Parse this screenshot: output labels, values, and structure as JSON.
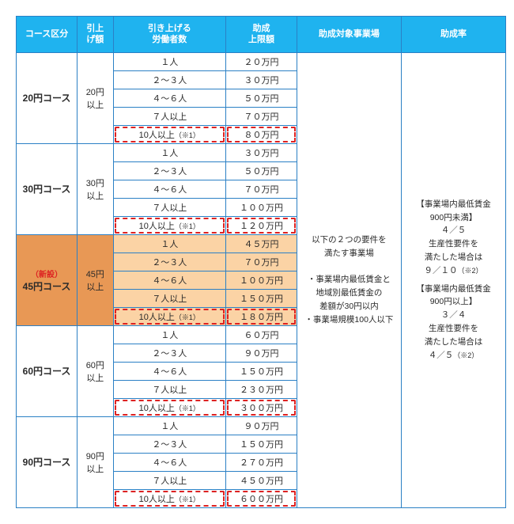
{
  "headers": {
    "course": "コース区分",
    "raise": "引上\nげ額",
    "workers": "引き上げる\n労働者数",
    "amount": "助成\n上限額",
    "target": "助成対象事業場",
    "rate": "助成率"
  },
  "courses": [
    {
      "name": "20円コース",
      "new_label": "",
      "raise": "20円\n以上",
      "rows": [
        {
          "workers": "１人",
          "amount": "２０万円",
          "dashed": false
        },
        {
          "workers": "２～３人",
          "amount": "３０万円",
          "dashed": false
        },
        {
          "workers": "４～６人",
          "amount": "５０万円",
          "dashed": false
        },
        {
          "workers": "７人以上",
          "amount": "７０万円",
          "dashed": false
        },
        {
          "workers": "10人以上（※1）",
          "amount": "８０万円",
          "dashed": true
        }
      ],
      "highlight": false
    },
    {
      "name": "30円コース",
      "new_label": "",
      "raise": "30円\n以上",
      "rows": [
        {
          "workers": "１人",
          "amount": "３０万円",
          "dashed": false
        },
        {
          "workers": "２～３人",
          "amount": "５０万円",
          "dashed": false
        },
        {
          "workers": "４～６人",
          "amount": "７０万円",
          "dashed": false
        },
        {
          "workers": "７人以上",
          "amount": "１００万円",
          "dashed": false
        },
        {
          "workers": "10人以上（※1）",
          "amount": "１２０万円",
          "dashed": true
        }
      ],
      "highlight": false
    },
    {
      "name": "45円コース",
      "new_label": "（新設）",
      "raise": "45円\n以上",
      "rows": [
        {
          "workers": "１人",
          "amount": "４５万円",
          "dashed": false
        },
        {
          "workers": "２～３人",
          "amount": "７０万円",
          "dashed": false
        },
        {
          "workers": "４～６人",
          "amount": "１００万円",
          "dashed": false
        },
        {
          "workers": "７人以上",
          "amount": "１５０万円",
          "dashed": false
        },
        {
          "workers": "10人以上（※1）",
          "amount": "１８０万円",
          "dashed": true
        }
      ],
      "highlight": true
    },
    {
      "name": "60円コース",
      "new_label": "",
      "raise": "60円\n以上",
      "rows": [
        {
          "workers": "１人",
          "amount": "６０万円",
          "dashed": false
        },
        {
          "workers": "２～３人",
          "amount": "９０万円",
          "dashed": false
        },
        {
          "workers": "４～６人",
          "amount": "１５０万円",
          "dashed": false
        },
        {
          "workers": "７人以上",
          "amount": "２３０万円",
          "dashed": false
        },
        {
          "workers": "10人以上（※1）",
          "amount": "３００万円",
          "dashed": true
        }
      ],
      "highlight": false
    },
    {
      "name": "90円コース",
      "new_label": "",
      "raise": "90円\n以上",
      "rows": [
        {
          "workers": "１人",
          "amount": "９０万円",
          "dashed": false
        },
        {
          "workers": "２～３人",
          "amount": "１５０万円",
          "dashed": false
        },
        {
          "workers": "４～６人",
          "amount": "２７０万円",
          "dashed": false
        },
        {
          "workers": "７人以上",
          "amount": "４５０万円",
          "dashed": false
        },
        {
          "workers": "10人以上（※1）",
          "amount": "６００万円",
          "dashed": true
        }
      ],
      "highlight": false
    }
  ],
  "target_text": {
    "l1": "以下の２つの要件を",
    "l2": "満たす事業場",
    "l3": "・事業場内最低賃金と",
    "l4": "地域別最低賃金の",
    "l5": "差額が30円以内",
    "l6": "・事業場規模100人以下"
  },
  "rate_text": {
    "b1l1": "【事業場内最低賃金",
    "b1l2": "900円未満】",
    "b1l3": "４／５",
    "b1l4": "生産性要件を",
    "b1l5": "満たした場合は",
    "b1l6": "９／１０（※2）",
    "b2l1": "【事業場内最低賃金",
    "b2l2": "900円以上】",
    "b2l3": "３／４",
    "b2l4": "生産性要件を",
    "b2l5": "満たした場合は",
    "b2l6": "４／５（※2）"
  },
  "colors": {
    "header_bg": "#1fb3ef",
    "border": "#2b80c5",
    "highlight_row": "#fbd3a5",
    "highlight_head": "#e89855",
    "dashed": "#d22"
  }
}
